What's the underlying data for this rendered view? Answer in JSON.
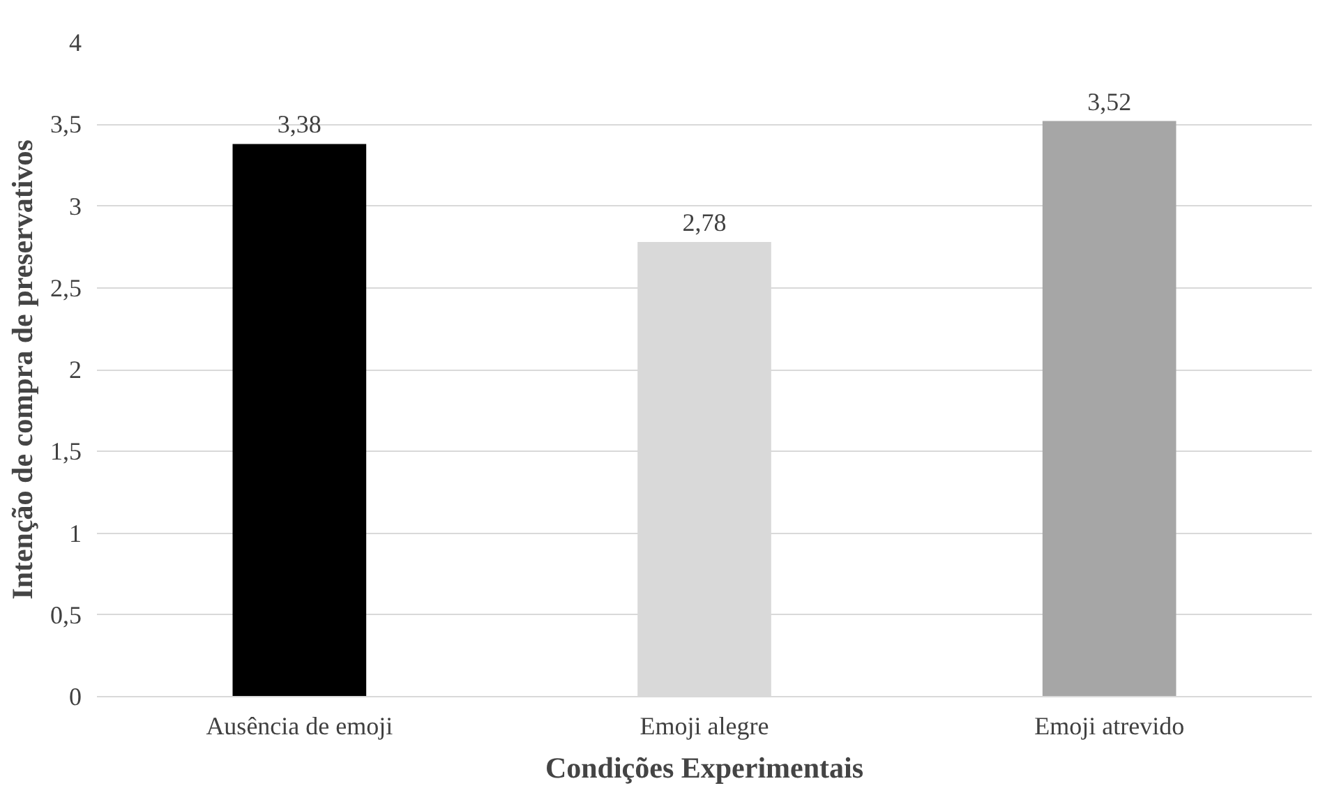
{
  "chart_data": {
    "type": "bar",
    "xlabel": "Condições Experimentais",
    "ylabel": "Intenção de compra de preservativos",
    "categories": [
      "Ausência de emoji",
      "Emoji alegre",
      "Emoji atrevido"
    ],
    "values": [
      3.38,
      2.78,
      3.52
    ],
    "colors": [
      "#000000",
      "#d9d9d9",
      "#a6a6a6"
    ],
    "value_labels": [
      "3,38",
      "2,78",
      "3,52"
    ],
    "ylim": [
      0,
      4
    ],
    "yticks": [
      0,
      {
        "value": 0.5,
        "label": "0,5"
      },
      1,
      {
        "value": 1.5,
        "label": "1,5"
      },
      2,
      {
        "value": 2.5,
        "label": "2,5"
      },
      3,
      {
        "value": 3.5,
        "label": "3,5"
      },
      4
    ],
    "grid": "y"
  }
}
